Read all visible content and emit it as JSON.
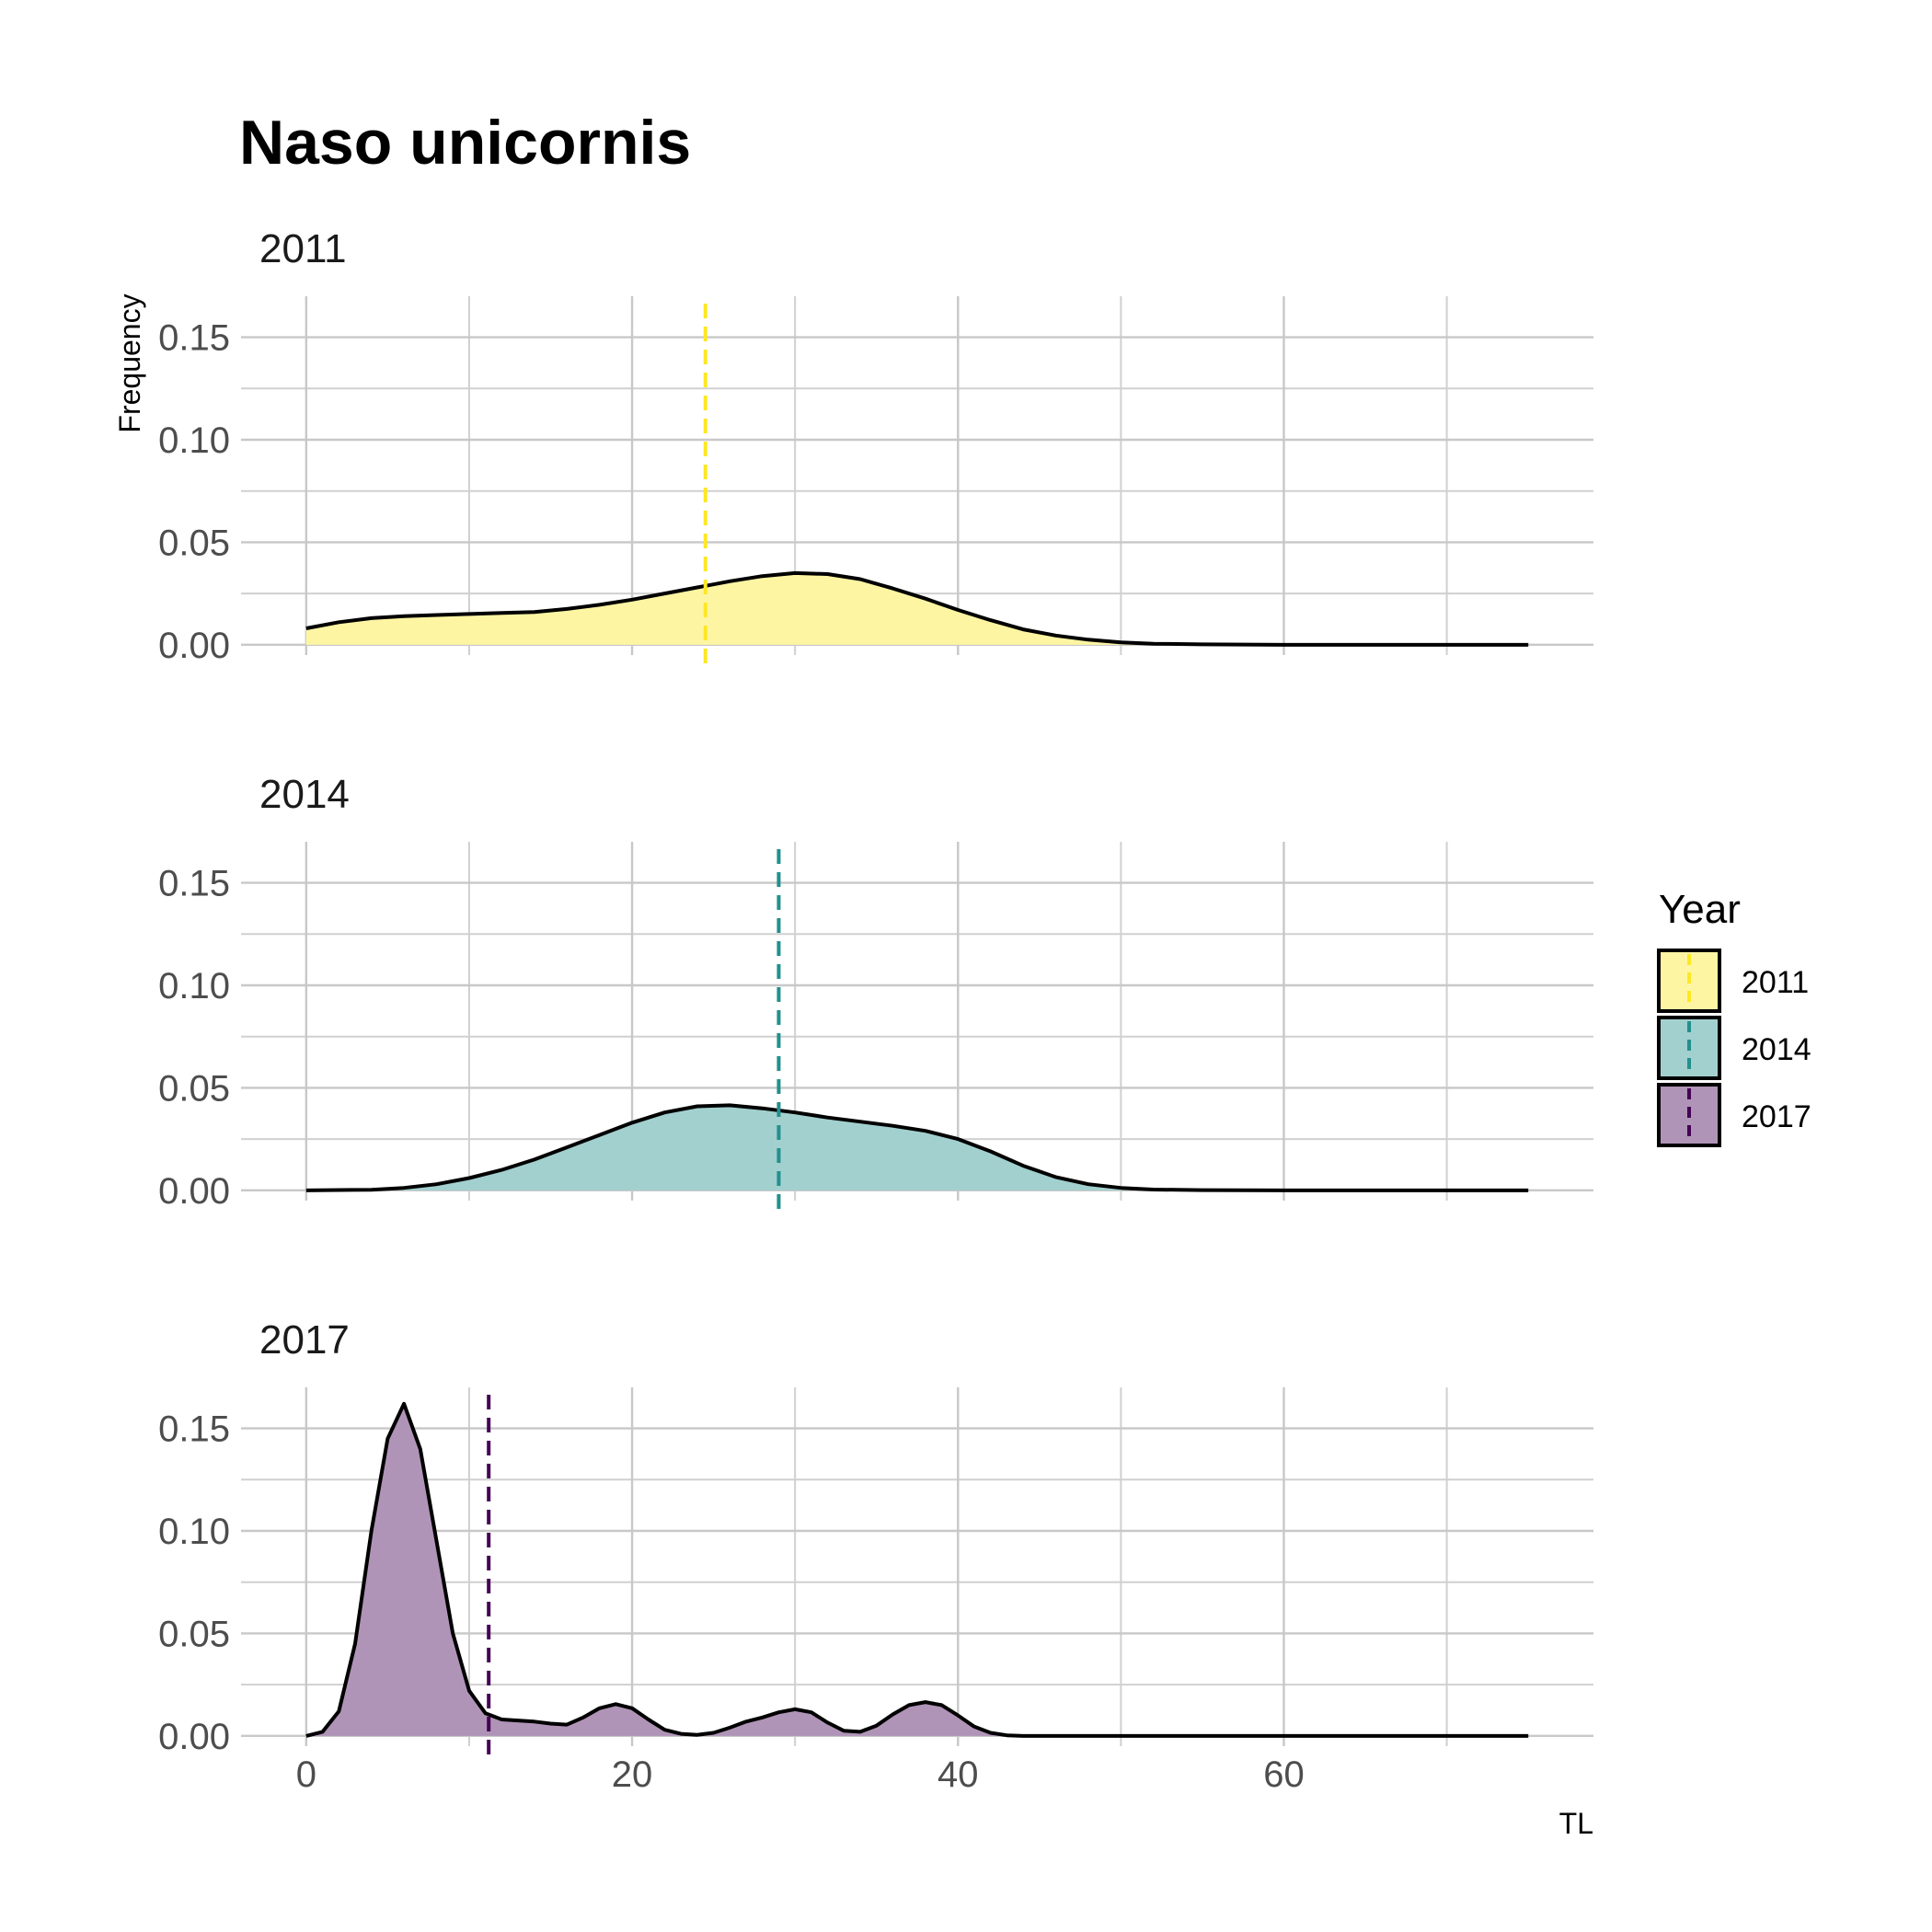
{
  "chart_data": {
    "type": "area",
    "title": "Naso unicornis",
    "xlabel": "TL",
    "ylabel": "Frequency",
    "xlim": [
      -4,
      79
    ],
    "ylim": [
      -0.005,
      0.17
    ],
    "x_ticks": [
      0,
      20,
      40,
      60
    ],
    "y_ticks": [
      "0.00",
      "0.05",
      "0.10",
      "0.15"
    ],
    "grid": true,
    "legend": {
      "title": "Year",
      "position": "right",
      "entries": [
        "2011",
        "2014",
        "2017"
      ]
    },
    "series": [
      {
        "name": "2011",
        "color": "#FDE725",
        "mean_line": 24.5,
        "x": [
          0,
          2,
          4,
          6,
          8,
          10,
          12,
          14,
          16,
          18,
          20,
          22,
          24,
          26,
          28,
          30,
          32,
          34,
          36,
          38,
          40,
          42,
          44,
          46,
          48,
          50,
          52,
          55,
          60,
          65,
          70,
          75
        ],
        "values": [
          0.008,
          0.011,
          0.013,
          0.014,
          0.0145,
          0.015,
          0.0155,
          0.016,
          0.0175,
          0.0195,
          0.022,
          0.025,
          0.028,
          0.031,
          0.0335,
          0.035,
          0.0345,
          0.032,
          0.0275,
          0.0225,
          0.017,
          0.012,
          0.0075,
          0.0045,
          0.0025,
          0.0012,
          0.0005,
          0.0002,
          0.0,
          0.0,
          0.0,
          0.0
        ]
      },
      {
        "name": "2014",
        "color": "#21908C",
        "mean_line": 29.0,
        "x": [
          0,
          4,
          6,
          8,
          10,
          12,
          14,
          16,
          18,
          20,
          22,
          24,
          26,
          28,
          30,
          32,
          34,
          36,
          38,
          40,
          42,
          44,
          46,
          48,
          50,
          52,
          55,
          60,
          65,
          70,
          75
        ],
        "values": [
          0.0,
          0.0003,
          0.0012,
          0.003,
          0.006,
          0.01,
          0.015,
          0.021,
          0.027,
          0.033,
          0.038,
          0.041,
          0.0415,
          0.04,
          0.038,
          0.0355,
          0.0335,
          0.0315,
          0.029,
          0.025,
          0.019,
          0.012,
          0.0065,
          0.003,
          0.0012,
          0.0004,
          0.0001,
          0.0,
          0.0,
          0.0,
          0.0
        ]
      },
      {
        "name": "2017",
        "color": "#440154",
        "mean_line": 11.2,
        "x": [
          0,
          1,
          2,
          3,
          4,
          5,
          6,
          7,
          8,
          9,
          10,
          11,
          12,
          13,
          14,
          15,
          16,
          17,
          18,
          19,
          20,
          21,
          22,
          23,
          24,
          25,
          26,
          27,
          28,
          29,
          30,
          31,
          32,
          33,
          34,
          35,
          36,
          37,
          38,
          39,
          40,
          41,
          42,
          43,
          44,
          45,
          50,
          55,
          60,
          65,
          70,
          75
        ],
        "values": [
          0.0,
          0.002,
          0.012,
          0.045,
          0.1,
          0.145,
          0.162,
          0.14,
          0.095,
          0.05,
          0.022,
          0.011,
          0.008,
          0.0075,
          0.007,
          0.006,
          0.0055,
          0.009,
          0.0135,
          0.0155,
          0.0135,
          0.008,
          0.003,
          0.001,
          0.0005,
          0.0015,
          0.004,
          0.007,
          0.009,
          0.0115,
          0.013,
          0.0115,
          0.0065,
          0.0025,
          0.002,
          0.005,
          0.0105,
          0.015,
          0.0165,
          0.015,
          0.01,
          0.0045,
          0.0015,
          0.0003,
          0.0,
          0.0,
          0.0,
          0.0,
          0.0,
          0.0,
          0.0,
          0.0
        ]
      }
    ]
  }
}
